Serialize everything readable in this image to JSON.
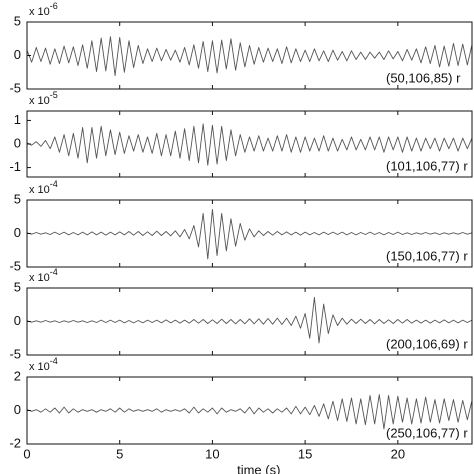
{
  "chart_data": [
    {
      "type": "line",
      "y_scale": "x 10",
      "y_scale_exponent": "-6",
      "annotation": "(50,106,85) r",
      "color": "#555555",
      "xlim": [
        0,
        24
      ],
      "xticks": [
        0,
        5,
        10,
        15,
        20
      ],
      "xtick_labels": false,
      "ylim": [
        -5,
        5
      ],
      "yticks": [
        -5,
        0,
        5
      ],
      "x": [
        0,
        0.25,
        0.5,
        0.75,
        1,
        1.25,
        1.5,
        1.75,
        2,
        2.25,
        2.5,
        2.75,
        3,
        3.25,
        3.5,
        3.75,
        4,
        4.25,
        4.5,
        4.75,
        5,
        5.25,
        5.5,
        5.75,
        6,
        6.25,
        6.5,
        6.75,
        7,
        7.25,
        7.5,
        7.75,
        8,
        8.25,
        8.5,
        8.75,
        9,
        9.25,
        9.5,
        9.75,
        10,
        10.25,
        10.5,
        10.75,
        11,
        11.25,
        11.5,
        11.75,
        12,
        12.25,
        12.5,
        12.75,
        13,
        13.25,
        13.5,
        13.75,
        14,
        14.25,
        14.5,
        14.75,
        15,
        15.25,
        15.5,
        15.75,
        16,
        16.25,
        16.5,
        16.75,
        17,
        17.25,
        17.5,
        17.75,
        18,
        18.25,
        18.5,
        18.75,
        19,
        19.25,
        19.5,
        19.75,
        20,
        20.25,
        20.5,
        20.75,
        21,
        21.25,
        21.5,
        21.75,
        22,
        22.25,
        22.5,
        22.75,
        23,
        23.25,
        23.5,
        23.75,
        24
      ],
      "values": [
        0.8,
        -1.0,
        1.2,
        -0.9,
        1.1,
        -1.3,
        1.0,
        -1.2,
        1.4,
        -1.1,
        1.3,
        -1.5,
        1.6,
        -1.9,
        2.2,
        -2.4,
        2.6,
        -2.3,
        2.8,
        -3.0,
        2.7,
        -2.5,
        2.2,
        -1.8,
        1.5,
        -1.2,
        1.0,
        -0.9,
        1.1,
        -0.8,
        0.9,
        -0.7,
        0.8,
        -1.0,
        1.2,
        -1.4,
        1.6,
        -1.9,
        2.1,
        -2.4,
        2.2,
        -2.6,
        2.3,
        -2.0,
        2.5,
        -2.2,
        1.9,
        -1.7,
        1.5,
        -1.3,
        1.2,
        -1.0,
        1.1,
        -0.9,
        1.0,
        -1.2,
        1.3,
        -1.1,
        1.0,
        -0.9,
        0.8,
        -0.9,
        1.0,
        -0.8,
        0.7,
        -0.9,
        0.8,
        -0.7,
        0.6,
        -0.8,
        0.7,
        -0.6,
        0.5,
        -0.6,
        0.5,
        -0.4,
        0.5,
        -0.6,
        0.7,
        -0.5,
        0.6,
        -0.8,
        0.9,
        -0.7,
        1.0,
        -1.1,
        1.3,
        -1.2,
        1.5,
        -1.7,
        1.4,
        -1.6,
        1.8,
        -1.5,
        1.7,
        -1.4,
        1.6
      ]
    },
    {
      "type": "line",
      "y_scale": "x 10",
      "y_scale_exponent": "-5",
      "annotation": "(101,106,77) r",
      "color": "#555555",
      "xlim": [
        0,
        24
      ],
      "xticks": [
        0,
        5,
        10,
        15,
        20
      ],
      "xtick_labels": false,
      "ylim": [
        -1.4,
        1.4
      ],
      "yticks": [
        -1,
        0,
        1
      ],
      "x": [
        0,
        0.25,
        0.5,
        0.75,
        1,
        1.25,
        1.5,
        1.75,
        2,
        2.25,
        2.5,
        2.75,
        3,
        3.25,
        3.5,
        3.75,
        4,
        4.25,
        4.5,
        4.75,
        5,
        5.25,
        5.5,
        5.75,
        6,
        6.25,
        6.5,
        6.75,
        7,
        7.25,
        7.5,
        7.75,
        8,
        8.25,
        8.5,
        8.75,
        9,
        9.25,
        9.5,
        9.75,
        10,
        10.25,
        10.5,
        10.75,
        11,
        11.25,
        11.5,
        11.75,
        12,
        12.25,
        12.5,
        12.75,
        13,
        13.25,
        13.5,
        13.75,
        14,
        14.25,
        14.5,
        14.75,
        15,
        15.25,
        15.5,
        15.75,
        16,
        16.25,
        16.5,
        16.75,
        17,
        17.25,
        17.5,
        17.75,
        18,
        18.25,
        18.5,
        18.75,
        19,
        19.25,
        19.5,
        19.75,
        20,
        20.25,
        20.5,
        20.75,
        21,
        21.25,
        21.5,
        21.75,
        22,
        22.25,
        22.5,
        22.75,
        23,
        23.25,
        23.5,
        23.75,
        24
      ],
      "values": [
        0.05,
        -0.05,
        0.1,
        -0.1,
        0.15,
        -0.2,
        0.3,
        -0.35,
        0.4,
        -0.5,
        0.45,
        -0.6,
        0.7,
        -0.8,
        0.7,
        -0.6,
        0.75,
        -0.5,
        0.6,
        -0.45,
        0.5,
        -0.4,
        0.35,
        -0.3,
        0.4,
        -0.35,
        0.3,
        -0.4,
        0.45,
        -0.5,
        0.4,
        -0.5,
        0.55,
        -0.6,
        0.65,
        -0.7,
        0.75,
        -0.8,
        0.85,
        -0.9,
        0.8,
        -0.85,
        0.75,
        -0.7,
        0.6,
        -0.5,
        0.4,
        -0.35,
        0.3,
        -0.3,
        0.35,
        -0.3,
        0.25,
        -0.3,
        0.35,
        -0.3,
        0.4,
        -0.35,
        0.3,
        -0.35,
        0.3,
        -0.3,
        0.25,
        -0.3,
        0.35,
        -0.3,
        0.25,
        -0.3,
        0.2,
        -0.25,
        0.3,
        -0.25,
        0.2,
        -0.25,
        0.3,
        -0.25,
        0.3,
        -0.35,
        0.3,
        -0.25,
        0.3,
        -0.35,
        0.3,
        -0.3,
        0.25,
        -0.3,
        0.25,
        -0.2,
        0.25,
        -0.3,
        0.25,
        -0.2,
        0.25,
        -0.3,
        0.25,
        -0.2,
        0.25
      ]
    },
    {
      "type": "line",
      "y_scale": "x 10",
      "y_scale_exponent": "-4",
      "annotation": "(150,106,77) r",
      "color": "#555555",
      "xlim": [
        0,
        24
      ],
      "xticks": [
        0,
        5,
        10,
        15,
        20
      ],
      "xtick_labels": false,
      "ylim": [
        -5,
        5
      ],
      "yticks": [
        -5,
        0,
        5
      ],
      "x": [
        0,
        0.25,
        0.5,
        0.75,
        1,
        1.25,
        1.5,
        1.75,
        2,
        2.25,
        2.5,
        2.75,
        3,
        3.25,
        3.5,
        3.75,
        4,
        4.25,
        4.5,
        4.75,
        5,
        5.25,
        5.5,
        5.75,
        6,
        6.25,
        6.5,
        6.75,
        7,
        7.25,
        7.5,
        7.75,
        8,
        8.25,
        8.5,
        8.75,
        9,
        9.25,
        9.5,
        9.75,
        10,
        10.25,
        10.5,
        10.75,
        11,
        11.25,
        11.5,
        11.75,
        12,
        12.25,
        12.5,
        12.75,
        13,
        13.25,
        13.5,
        13.75,
        14,
        14.25,
        14.5,
        14.75,
        15,
        15.25,
        15.5,
        15.75,
        16,
        16.25,
        16.5,
        16.75,
        17,
        17.25,
        17.5,
        17.75,
        18,
        18.25,
        18.5,
        18.75,
        19,
        19.25,
        19.5,
        19.75,
        20,
        20.25,
        20.5,
        20.75,
        21,
        21.25,
        21.5,
        21.75,
        22,
        22.25,
        22.5,
        22.75,
        23,
        23.25,
        23.5,
        23.75,
        24
      ],
      "values": [
        0.1,
        -0.1,
        0.15,
        -0.1,
        0.1,
        -0.15,
        0.2,
        -0.15,
        0.2,
        -0.2,
        0.15,
        -0.2,
        0.2,
        -0.2,
        0.25,
        -0.2,
        0.2,
        -0.25,
        0.2,
        -0.2,
        0.25,
        -0.2,
        0.3,
        -0.25,
        0.3,
        -0.3,
        0.25,
        -0.3,
        0.35,
        -0.3,
        0.3,
        -0.35,
        0.4,
        -0.5,
        0.6,
        -0.8,
        1.2,
        -2.0,
        3.0,
        -3.8,
        3.6,
        -3.3,
        3.0,
        -2.6,
        2.2,
        -1.9,
        1.5,
        -1.0,
        0.7,
        -0.5,
        0.4,
        -0.3,
        0.3,
        -0.25,
        0.3,
        -0.2,
        0.25,
        -0.2,
        0.2,
        -0.25,
        0.2,
        -0.2,
        0.15,
        -0.2,
        0.2,
        -0.15,
        0.2,
        -0.15,
        0.2,
        -0.2,
        0.15,
        -0.2,
        0.15,
        -0.15,
        0.2,
        -0.15,
        0.15,
        -0.2,
        0.15,
        -0.15,
        0.2,
        -0.15,
        0.1,
        -0.15,
        0.1,
        -0.1,
        0.15,
        -0.1,
        0.1,
        -0.15,
        0.1,
        -0.1,
        0.1,
        -0.1,
        0.15,
        -0.1,
        0.1
      ]
    },
    {
      "type": "line",
      "y_scale": "x 10",
      "y_scale_exponent": "-4",
      "annotation": "(200,106,69) r",
      "color": "#555555",
      "xlim": [
        0,
        24
      ],
      "xticks": [
        0,
        5,
        10,
        15,
        20
      ],
      "xtick_labels": false,
      "ylim": [
        -5,
        5
      ],
      "yticks": [
        -5,
        0,
        5
      ],
      "x": [
        0,
        0.25,
        0.5,
        0.75,
        1,
        1.25,
        1.5,
        1.75,
        2,
        2.25,
        2.5,
        2.75,
        3,
        3.25,
        3.5,
        3.75,
        4,
        4.25,
        4.5,
        4.75,
        5,
        5.25,
        5.5,
        5.75,
        6,
        6.25,
        6.5,
        6.75,
        7,
        7.25,
        7.5,
        7.75,
        8,
        8.25,
        8.5,
        8.75,
        9,
        9.25,
        9.5,
        9.75,
        10,
        10.25,
        10.5,
        10.75,
        11,
        11.25,
        11.5,
        11.75,
        12,
        12.25,
        12.5,
        12.75,
        13,
        13.25,
        13.5,
        13.75,
        14,
        14.25,
        14.5,
        14.75,
        15,
        15.25,
        15.5,
        15.75,
        16,
        16.25,
        16.5,
        16.75,
        17,
        17.25,
        17.5,
        17.75,
        18,
        18.25,
        18.5,
        18.75,
        19,
        19.25,
        19.5,
        19.75,
        20,
        20.25,
        20.5,
        20.75,
        21,
        21.25,
        21.5,
        21.75,
        22,
        22.25,
        22.5,
        22.75,
        23,
        23.25,
        23.5,
        23.75,
        24
      ],
      "values": [
        0.1,
        -0.1,
        0.1,
        -0.1,
        0.15,
        -0.1,
        0.1,
        -0.15,
        0.1,
        -0.1,
        0.15,
        -0.1,
        0.1,
        -0.15,
        0.1,
        -0.15,
        0.2,
        -0.15,
        0.2,
        -0.15,
        0.2,
        -0.2,
        0.15,
        -0.2,
        0.15,
        -0.2,
        0.2,
        -0.15,
        0.2,
        -0.2,
        0.25,
        -0.2,
        0.2,
        -0.25,
        0.2,
        -0.25,
        0.3,
        -0.25,
        0.3,
        -0.3,
        0.25,
        -0.3,
        0.35,
        -0.3,
        0.3,
        -0.35,
        0.3,
        -0.35,
        0.4,
        -0.35,
        0.4,
        -0.4,
        0.45,
        -0.4,
        0.5,
        -0.45,
        0.5,
        -0.6,
        0.8,
        -1.0,
        1.2,
        -2.5,
        3.6,
        -3.2,
        2.6,
        -1.8,
        1.0,
        -0.6,
        0.5,
        -0.4,
        0.35,
        -0.3,
        0.35,
        -0.3,
        0.3,
        -0.35,
        0.3,
        -0.3,
        0.25,
        -0.3,
        0.3,
        -0.25,
        0.3,
        -0.25,
        0.2,
        -0.25,
        0.2,
        -0.25,
        0.2,
        -0.2,
        0.25,
        -0.2,
        0.2,
        -0.2,
        0.2,
        -0.15,
        0.2
      ]
    },
    {
      "type": "line",
      "y_scale": "x 10",
      "y_scale_exponent": "-4",
      "annotation": "(250,106,77) r",
      "color": "#555555",
      "xlim": [
        0,
        24
      ],
      "xticks": [
        0,
        5,
        10,
        15,
        20
      ],
      "xtick_labels": true,
      "xlabel": "time (s)",
      "ylim": [
        -2,
        2
      ],
      "yticks": [
        -2,
        0,
        2
      ],
      "x": [
        0,
        0.25,
        0.5,
        0.75,
        1,
        1.25,
        1.5,
        1.75,
        2,
        2.25,
        2.5,
        2.75,
        3,
        3.25,
        3.5,
        3.75,
        4,
        4.25,
        4.5,
        4.75,
        5,
        5.25,
        5.5,
        5.75,
        6,
        6.25,
        6.5,
        6.75,
        7,
        7.25,
        7.5,
        7.75,
        8,
        8.25,
        8.5,
        8.75,
        9,
        9.25,
        9.5,
        9.75,
        10,
        10.25,
        10.5,
        10.75,
        11,
        11.25,
        11.5,
        11.75,
        12,
        12.25,
        12.5,
        12.75,
        13,
        13.25,
        13.5,
        13.75,
        14,
        14.25,
        14.5,
        14.75,
        15,
        15.25,
        15.5,
        15.75,
        16,
        16.25,
        16.5,
        16.75,
        17,
        17.25,
        17.5,
        17.75,
        18,
        18.25,
        18.5,
        18.75,
        19,
        19.25,
        19.5,
        19.75,
        20,
        20.25,
        20.5,
        20.75,
        21,
        21.25,
        21.5,
        21.75,
        22,
        22.25,
        22.5,
        22.75,
        23,
        23.25,
        23.5,
        23.75,
        24
      ],
      "values": [
        0.05,
        -0.05,
        0.05,
        -0.1,
        0.1,
        -0.1,
        0.15,
        -0.15,
        0.2,
        -0.15,
        0.1,
        -0.1,
        0.05,
        -0.05,
        0.05,
        -0.1,
        0.05,
        -0.05,
        0.1,
        -0.1,
        0.15,
        -0.1,
        0.1,
        -0.05,
        0.05,
        -0.05,
        0.05,
        -0.05,
        0.1,
        -0.1,
        0.05,
        -0.05,
        0.05,
        -0.05,
        0.1,
        -0.15,
        0.2,
        -0.15,
        0.1,
        -0.1,
        0.15,
        -0.2,
        0.15,
        -0.1,
        0.05,
        -0.05,
        0.1,
        -0.15,
        0.2,
        -0.2,
        0.15,
        -0.1,
        0.1,
        -0.15,
        0.1,
        -0.1,
        0.15,
        -0.2,
        0.25,
        -0.2,
        0.2,
        -0.25,
        0.3,
        -0.35,
        0.4,
        -0.5,
        0.55,
        -0.6,
        0.7,
        -0.65,
        0.75,
        -0.8,
        0.7,
        -0.85,
        0.9,
        -0.8,
        0.95,
        -1.1,
        0.9,
        -0.8,
        0.85,
        -0.7,
        0.75,
        -0.8,
        0.7,
        -0.75,
        0.8,
        -0.7,
        0.65,
        -0.75,
        0.7,
        -0.6,
        0.65,
        -0.7,
        0.6,
        -0.55,
        0.6
      ]
    }
  ]
}
